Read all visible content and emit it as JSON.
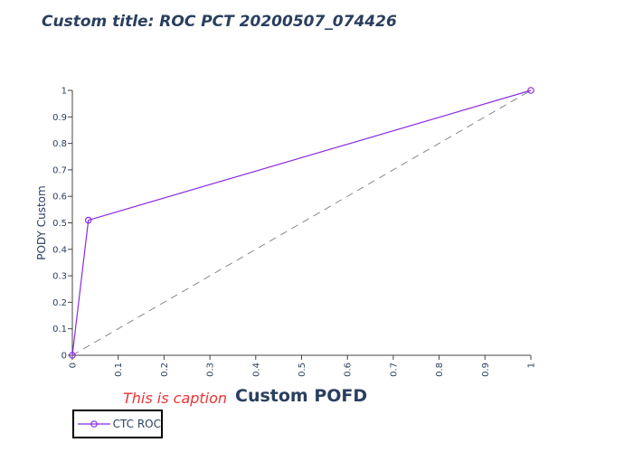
{
  "chart_data": {
    "type": "line",
    "title": "Custom title: ROC PCT 20200507_074426",
    "caption": "This is caption",
    "xlabel": "Custom POFD",
    "ylabel": "PODY Custom",
    "xlim": [
      0,
      1
    ],
    "ylim": [
      0,
      1
    ],
    "x_ticks": [
      "0",
      "0.1",
      "0.2",
      "0.3",
      "0.4",
      "0.5",
      "0.6",
      "0.7",
      "0.8",
      "0.9",
      "1"
    ],
    "y_ticks": [
      "0",
      "0.1",
      "0.2",
      "0.3",
      "0.4",
      "0.5",
      "0.6",
      "0.7",
      "0.8",
      "0.9",
      "1"
    ],
    "grid": false,
    "legend_position": "bottom-left",
    "series": [
      {
        "name": "CTC ROC",
        "color": "#8a2be2",
        "marker": "open-circle",
        "x": [
          0,
          0.035,
          1
        ],
        "y": [
          0,
          0.51,
          1
        ]
      }
    ],
    "reference_line": {
      "x": [
        0,
        1
      ],
      "y": [
        0,
        1
      ],
      "style": "dashed",
      "color": "#888888"
    }
  }
}
